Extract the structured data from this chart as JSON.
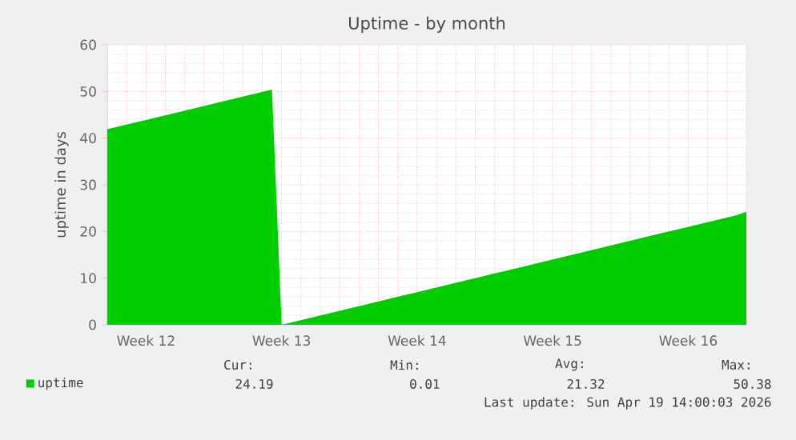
{
  "chart_data": {
    "type": "area",
    "title": "Uptime - by month",
    "ylabel": "uptime in days",
    "categories": [
      null,
      null,
      null,
      null,
      "Week 12",
      null,
      null,
      null,
      null,
      null,
      null,
      null,
      null,
      null,
      null,
      null,
      null,
      null,
      "Week 13",
      null,
      null,
      null,
      null,
      null,
      null,
      null,
      null,
      null,
      null,
      null,
      null,
      null,
      "Week 14",
      null,
      null,
      null,
      null,
      null,
      null,
      null,
      null,
      null,
      null,
      null,
      null,
      null,
      "Week 15",
      null,
      null,
      null,
      null,
      null,
      null,
      null,
      null,
      null,
      null,
      null,
      null,
      null,
      "Week 16",
      null,
      null,
      null,
      null,
      null,
      null
    ],
    "series": [
      {
        "name": "uptime",
        "color": "#00cc00",
        "values": [
          41.9,
          42.4,
          42.9,
          43.4,
          43.9,
          44.4,
          44.9,
          45.4,
          45.9,
          46.4,
          46.9,
          47.4,
          47.9,
          48.4,
          48.9,
          49.4,
          49.9,
          50.4,
          0.0,
          0.5,
          1.0,
          1.5,
          2.0,
          2.5,
          3.0,
          3.5,
          4.0,
          4.5,
          5.0,
          5.5,
          6.0,
          6.5,
          7.0,
          7.5,
          8.0,
          8.5,
          9.0,
          9.5,
          10.0,
          10.5,
          11.0,
          11.5,
          12.0,
          12.5,
          13.0,
          13.5,
          14.0,
          14.5,
          15.0,
          15.5,
          16.0,
          16.5,
          17.0,
          17.5,
          18.0,
          18.5,
          19.0,
          19.5,
          20.0,
          20.5,
          21.0,
          21.5,
          22.0,
          22.5,
          23.0,
          23.5,
          24.2
        ]
      }
    ],
    "ylim": [
      0,
      60
    ],
    "yticks": [
      0,
      10,
      20,
      30,
      40,
      50,
      60
    ],
    "grid": true,
    "legend": "bottom left",
    "annotations": [
      "Cur:",
      "24.19",
      "Min:",
      "0.01",
      "Avg:",
      "21.32",
      "Max:",
      "50.38",
      "Last update: Sun Apr 19 14:00:03 2026"
    ]
  }
}
